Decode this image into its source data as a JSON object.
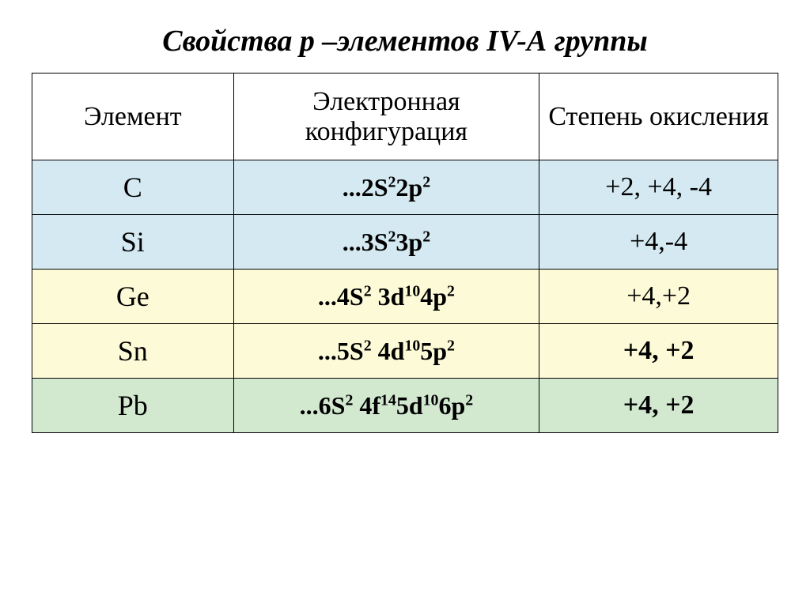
{
  "title": "Свойства  р –элементов IV-А группы",
  "columns": [
    "Элемент",
    "Электронная конфигурация",
    "Степень окисления"
  ],
  "row_colors": {
    "header": "#ffffff",
    "blue": "#d4e9f1",
    "yellow": "#fdfbd7",
    "green": "#d2e9d0"
  },
  "rows": [
    {
      "element": "C",
      "config_parts": [
        "...2S",
        "2",
        "2p",
        "2"
      ],
      "oxidation": "+2, +4, -4",
      "bg": "blue",
      "oxid_bold": false
    },
    {
      "element": "Si",
      "config_parts": [
        "...3S",
        "2",
        "3p",
        "2"
      ],
      "oxidation": "+4,-4",
      "bg": "blue",
      "oxid_bold": false
    },
    {
      "element": "Ge",
      "config_parts": [
        "...4S",
        "2",
        " 3d",
        "10",
        "4p",
        "2"
      ],
      "oxidation": "+4,+2",
      "bg": "yellow",
      "oxid_bold": false
    },
    {
      "element": "Sn",
      "config_parts": [
        "...5S",
        "2",
        " 4d",
        "10",
        "5p",
        "2"
      ],
      "oxidation": "+4, +2",
      "bg": "yellow",
      "oxid_bold": true
    },
    {
      "element": "Pb",
      "config_parts": [
        "...6S",
        "2",
        " 4f",
        "14",
        "5d",
        "10",
        "6p",
        "2"
      ],
      "oxidation": "+4, +2",
      "bg": "green",
      "oxid_bold": true
    }
  ]
}
